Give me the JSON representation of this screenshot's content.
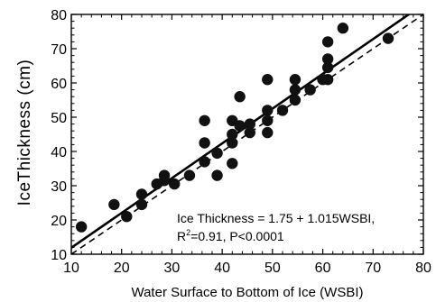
{
  "chart_data": {
    "type": "scatter",
    "xlabel": "Water Surface to Bottom of Ice (WSBI)",
    "ylabel": "IceThickness (cm)",
    "xlim": [
      10,
      80
    ],
    "ylim": [
      10,
      80
    ],
    "xticks": [
      "10",
      "20",
      "30",
      "40",
      "50",
      "60",
      "70",
      "80"
    ],
    "yticks": [
      "10",
      "20",
      "30",
      "40",
      "50",
      "60",
      "70",
      "80"
    ],
    "grid": false,
    "points": [
      [
        12,
        18
      ],
      [
        18.5,
        24.5
      ],
      [
        21,
        21
      ],
      [
        24,
        24.5
      ],
      [
        24,
        27.5
      ],
      [
        27,
        30.5
      ],
      [
        28.5,
        33
      ],
      [
        28.5,
        31.5
      ],
      [
        30.5,
        30.5
      ],
      [
        33.5,
        33
      ],
      [
        36.5,
        37
      ],
      [
        36.5,
        42.5
      ],
      [
        36.5,
        49
      ],
      [
        39,
        33
      ],
      [
        39,
        39.5
      ],
      [
        42,
        36.5
      ],
      [
        42,
        42.5
      ],
      [
        42,
        45
      ],
      [
        42,
        49
      ],
      [
        43.5,
        56
      ],
      [
        43.5,
        47.5
      ],
      [
        45.5,
        45.5
      ],
      [
        45.5,
        48
      ],
      [
        49,
        45.5
      ],
      [
        49,
        49
      ],
      [
        49,
        52
      ],
      [
        49,
        61
      ],
      [
        52,
        52
      ],
      [
        54.5,
        55
      ],
      [
        54.5,
        58
      ],
      [
        54.5,
        61
      ],
      [
        57.5,
        58
      ],
      [
        60,
        61
      ],
      [
        61,
        61
      ],
      [
        61,
        64.5
      ],
      [
        61,
        67
      ],
      [
        61,
        72
      ],
      [
        64,
        76
      ],
      [
        73,
        73
      ]
    ],
    "fit_line": {
      "intercept": 1.75,
      "slope": 1.015,
      "style": "solid"
    },
    "reference_line": {
      "intercept": 0,
      "slope": 1,
      "style": "dashed"
    },
    "annotation": {
      "line1": "Ice Thickness = 1.75 + 1.015WSBI,",
      "r_prefix": "R",
      "r_sup": "2",
      "r_suffix": "=0.91, P<0.0001"
    }
  }
}
